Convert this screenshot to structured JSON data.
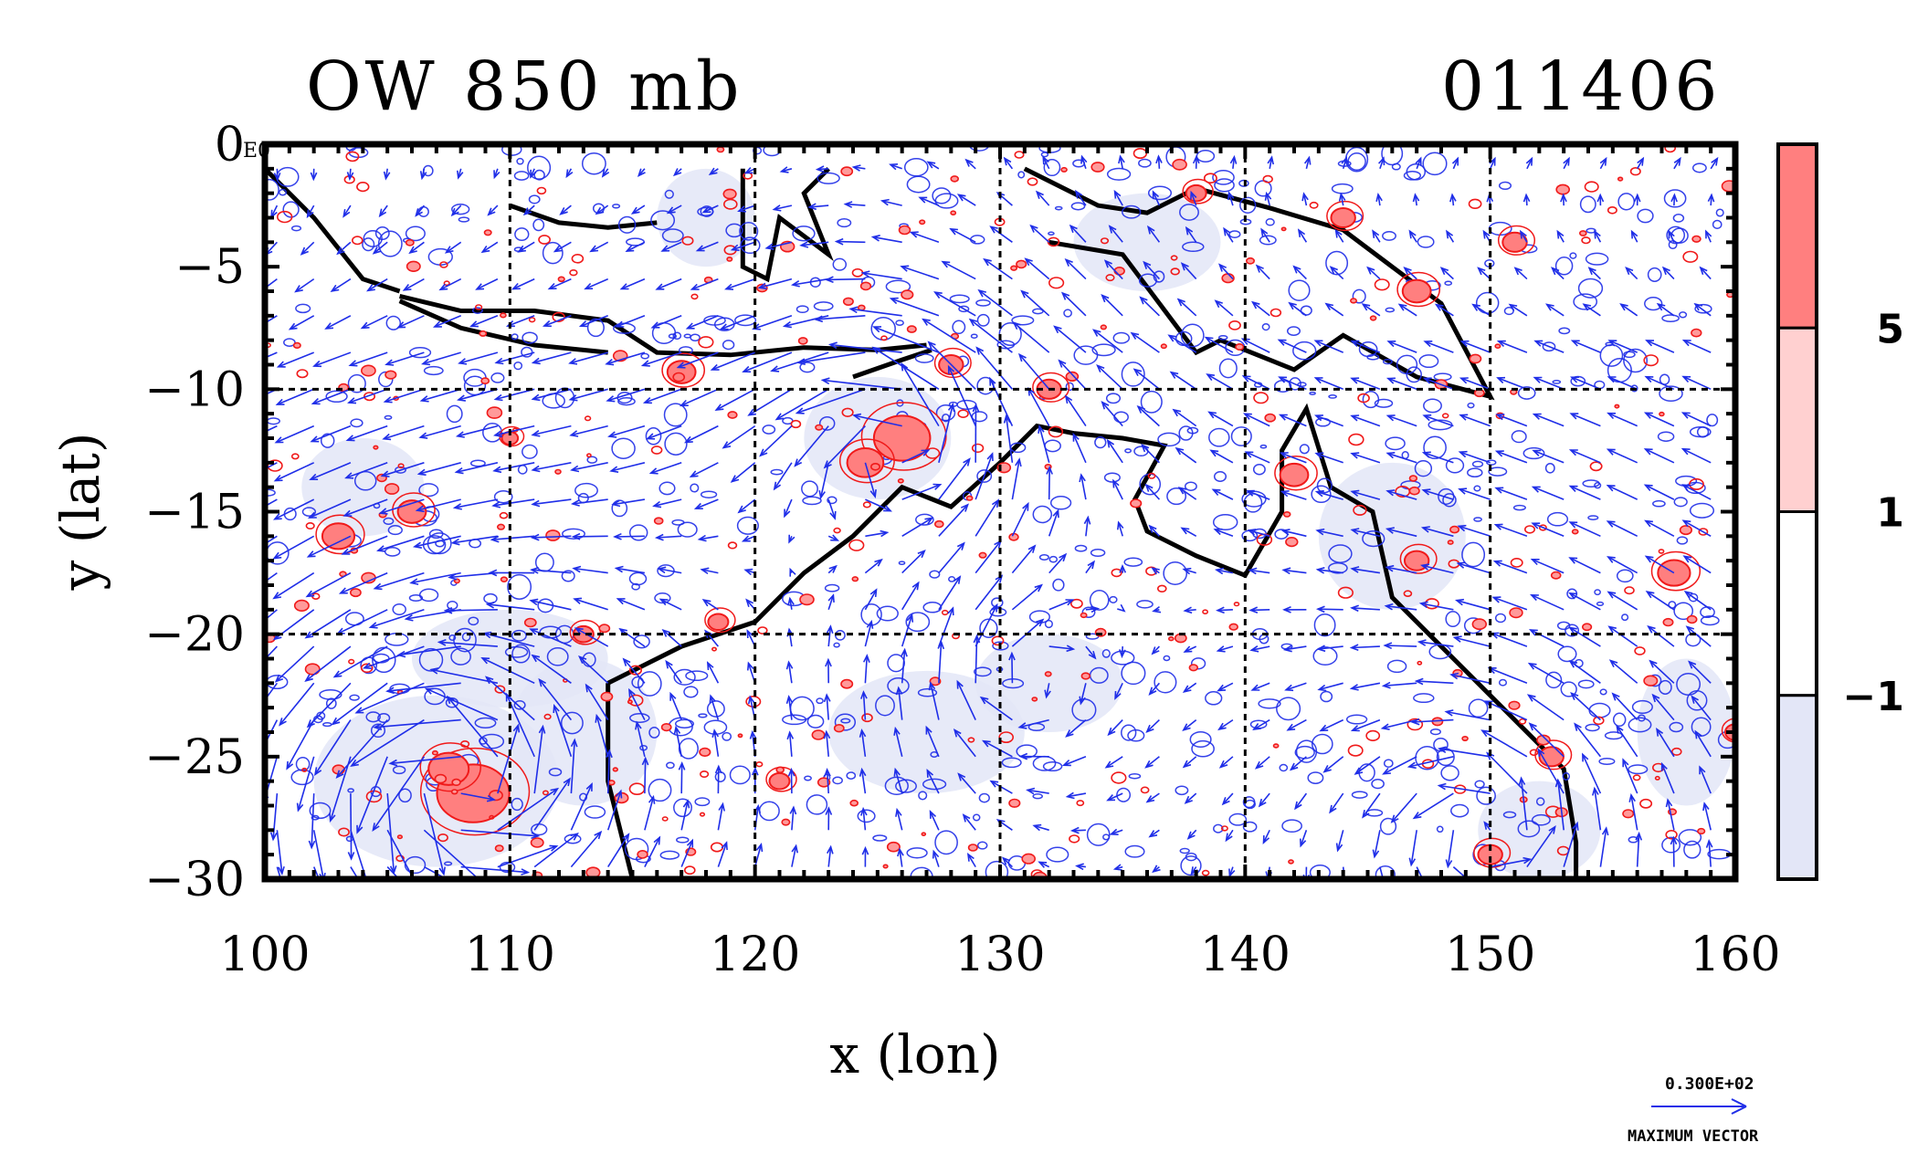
{
  "title": "OW 850 mb",
  "date_code": "011406",
  "corner_label": "E0",
  "chart_data": {
    "type": "contour-vector-map",
    "xlabel": "x (lon)",
    "ylabel": "y (lat)",
    "xlim": [
      100,
      160
    ],
    "ylim": [
      -30,
      0
    ],
    "x_ticks": [
      "100",
      "110",
      "120",
      "130",
      "140",
      "150",
      "160"
    ],
    "y_ticks": [
      "0",
      "−5",
      "−10",
      "−15",
      "−20",
      "−25",
      "−30"
    ],
    "x_tick_values": [
      100,
      110,
      120,
      130,
      140,
      150,
      160
    ],
    "y_tick_values": [
      0,
      -5,
      -10,
      -15,
      -20,
      -25,
      -30
    ],
    "grid": "dashed at 10 degree intervals",
    "colorbar": {
      "levels": [
        -1,
        1,
        5
      ],
      "labels": [
        "−1",
        "1",
        "5"
      ],
      "colors": [
        "#e3e6f7",
        "#ffffff",
        "#ffd0d0",
        "#ff7f7f"
      ]
    },
    "vector_reference": {
      "value_label": "0.300E+02",
      "caption": "MAXIMUM VECTOR"
    }
  },
  "colors": {
    "vector": "#1f2ee8",
    "positive_contour": "#f01a1a",
    "negative_shade": "#e3e6f7",
    "coast": "#000000"
  }
}
